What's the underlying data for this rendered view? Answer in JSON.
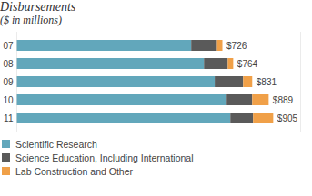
{
  "chart_data": {
    "type": "bar",
    "title": "Disbursements",
    "subtitle": "($ in millions)",
    "orientation": "horizontal",
    "stacked": true,
    "categories": [
      "07",
      "08",
      "09",
      "10",
      "11"
    ],
    "series": [
      {
        "name": "Scientific Research",
        "color": "#62a7bb",
        "values": [
          616,
          661,
          699,
          741,
          754
        ]
      },
      {
        "name": "Science Education, Including International",
        "color": "#5a5a5a",
        "values": [
          91,
          84,
          100,
          90,
          80
        ]
      },
      {
        "name": "Lab Construction and Other",
        "color": "#f0a048",
        "values": [
          19,
          19,
          32,
          58,
          71
        ]
      }
    ],
    "total_labels": [
      "$726",
      "$764",
      "$831",
      "$889",
      "$905"
    ],
    "xlim": [
      0,
      1000
    ],
    "xticks": [],
    "tick_labels": "y",
    "grid": false,
    "legend": "bottom"
  }
}
